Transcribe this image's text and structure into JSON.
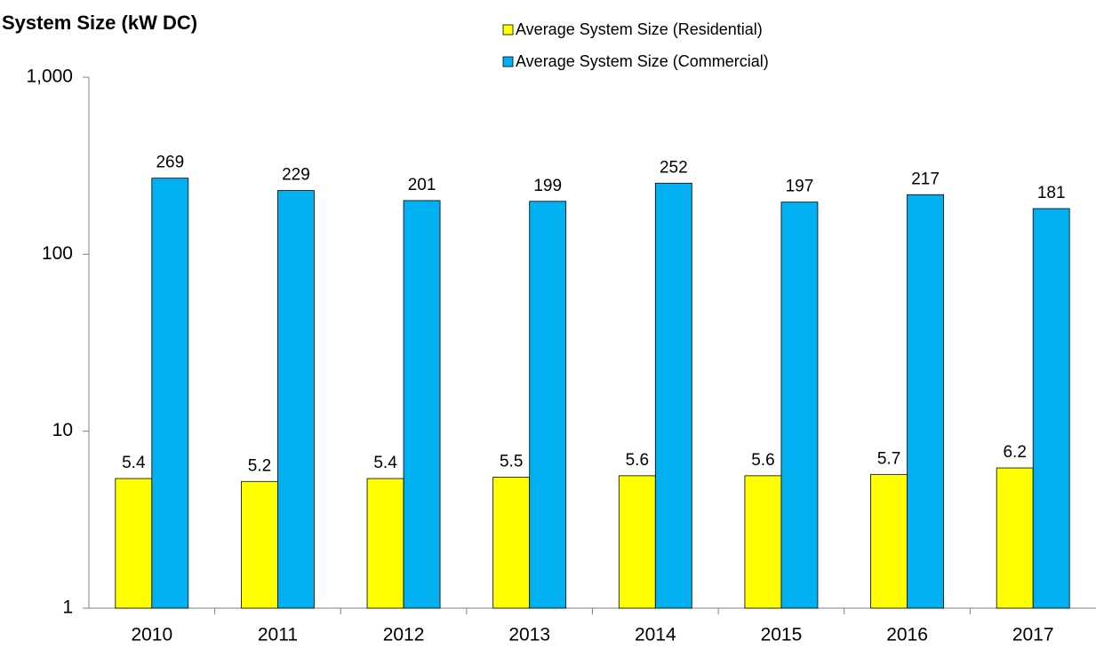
{
  "chart_data": {
    "type": "bar",
    "title": "System Size (kW DC)",
    "categories": [
      "2010",
      "2011",
      "2012",
      "2013",
      "2014",
      "2015",
      "2016",
      "2017"
    ],
    "series": [
      {
        "name": "Average System Size (Residential)",
        "color": "#ffff00",
        "values": [
          5.4,
          5.2,
          5.4,
          5.5,
          5.6,
          5.6,
          5.7,
          6.2
        ]
      },
      {
        "name": "Average System Size (Commercial)",
        "color": "#00b0f0",
        "values": [
          269,
          229,
          201,
          199,
          252,
          197,
          217,
          181
        ]
      }
    ],
    "ylim": [
      1,
      1000
    ],
    "yticks": [
      1,
      10,
      100,
      {
        "value": 1000,
        "label": "1,000"
      }
    ],
    "log_scale": true,
    "grid": false,
    "legend": "top"
  }
}
